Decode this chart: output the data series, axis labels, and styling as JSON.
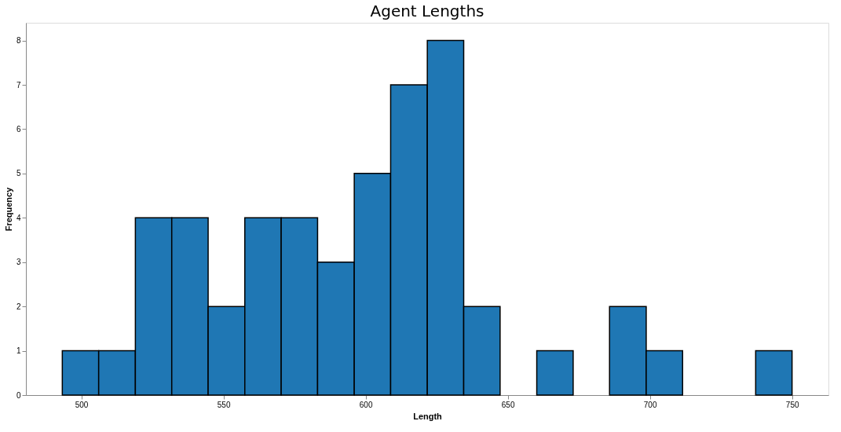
{
  "chart_data": {
    "type": "histogram",
    "title": "Agent Lengths",
    "xlabel": "Length",
    "ylabel": "Frequency",
    "bins": [
      493.3,
      506.1,
      519.0,
      531.8,
      544.6,
      557.5,
      570.3,
      583.1,
      596.0,
      608.8,
      621.7,
      634.5,
      647.3,
      660.2,
      673.0,
      685.8,
      698.7,
      711.5,
      724.3,
      737.2,
      750.0
    ],
    "values": [
      1,
      1,
      4,
      4,
      2,
      4,
      4,
      3,
      5,
      7,
      8,
      2,
      0,
      1,
      0,
      2,
      1,
      0,
      0,
      1
    ],
    "color": "#1f77b4",
    "xlim": [
      480.5,
      762.8
    ],
    "xticks": [
      500,
      550,
      600,
      650,
      700,
      750
    ],
    "ylim": [
      0,
      8.4
    ],
    "yticks": [
      0,
      1,
      2,
      3,
      4,
      5,
      6,
      7,
      8
    ],
    "grid": false
  }
}
